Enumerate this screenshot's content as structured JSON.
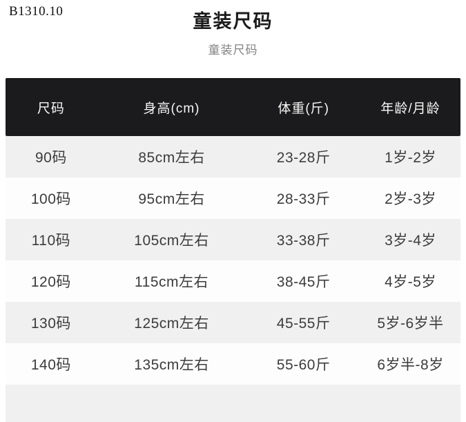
{
  "page": {
    "sku": "B1310.10",
    "title": "童装尺码",
    "subtitle": "童装尺码"
  },
  "colors": {
    "header_bg": "#1b1b1d",
    "header_text": "#f7f7f7",
    "row_alt_bg": "#f0f0f0",
    "row_bg": "#fdfdfd",
    "body_text": "#3c3c3c",
    "subtitle_text": "#828282"
  },
  "table": {
    "columns": [
      "尺码",
      "身高(cm)",
      "体重(斤)",
      "年龄/月龄"
    ],
    "rows": [
      [
        "90码",
        "85cm左右",
        "23-28斤",
        "1岁-2岁"
      ],
      [
        "100码",
        "95cm左右",
        "28-33斤",
        "2岁-3岁"
      ],
      [
        "110码",
        "105cm左右",
        "33-38斤",
        "3岁-4岁"
      ],
      [
        "120码",
        "115cm左右",
        "38-45斤",
        "4岁-5岁"
      ],
      [
        "130码",
        "125cm左右",
        "45-55斤",
        "5岁-6岁半"
      ],
      [
        "140码",
        "135cm左右",
        "55-60斤",
        "6岁半-8岁"
      ]
    ]
  }
}
